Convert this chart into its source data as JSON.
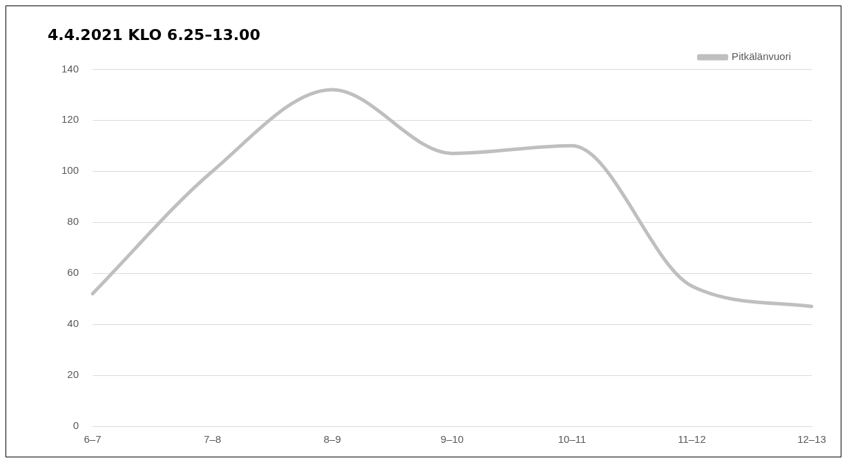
{
  "chart_data": {
    "type": "line",
    "title": "4.4.2021 KLO 6.25–13.00",
    "categories": [
      "6–7",
      "7–8",
      "8–9",
      "9–10",
      "10–11",
      "11–12",
      "12–13"
    ],
    "series": [
      {
        "name": "Pitkälänvuori",
        "color": "#bfbfbf",
        "values": [
          52,
          100,
          132,
          107,
          110,
          55,
          47
        ]
      }
    ],
    "ylim": [
      0,
      140
    ],
    "yticks": [
      0,
      20,
      40,
      60,
      80,
      100,
      120,
      140
    ],
    "grid": "y",
    "legend": "top right",
    "marker": "none"
  }
}
